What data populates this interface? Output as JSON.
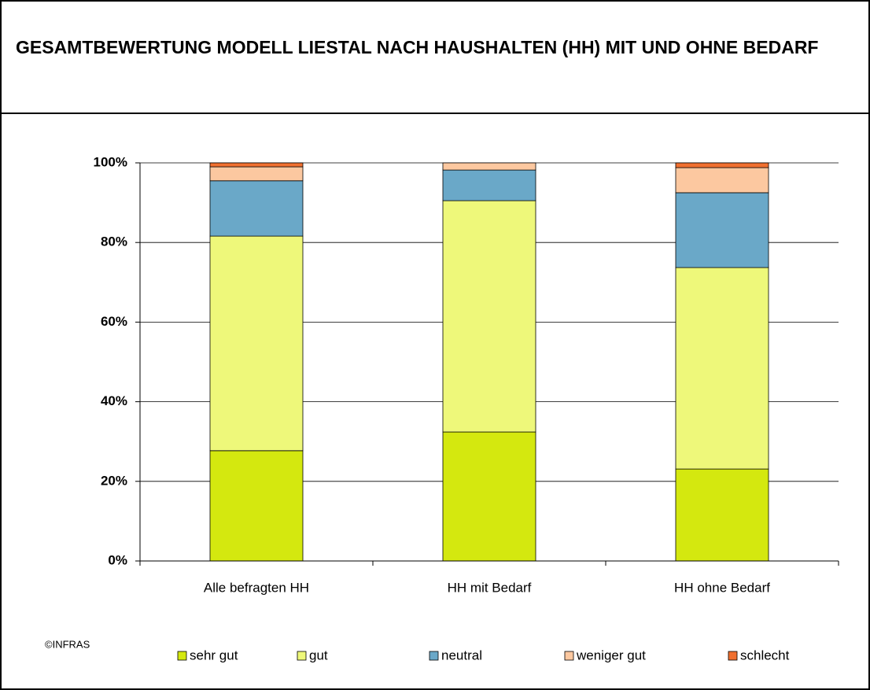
{
  "chart_data": {
    "type": "stacked_bar",
    "title": "GESAMTBEWERTUNG MODELL LIESTAL NACH HAUSHALTEN (HH) MIT UND OHNE BEDARF",
    "source": "©INFRAS",
    "categories": [
      "Alle befragten HH",
      "HH mit Bedarf",
      "HH ohne Bedarf"
    ],
    "series": [
      {
        "name": "sehr gut",
        "color": "#d4e80f",
        "values": [
          27.7,
          32.4,
          23.1
        ]
      },
      {
        "name": "gut",
        "color": "#eef87a",
        "values": [
          53.9,
          58.1,
          50.6
        ]
      },
      {
        "name": "neutral",
        "color": "#6aa8c8",
        "values": [
          13.9,
          7.7,
          18.8
        ]
      },
      {
        "name": "weniger gut",
        "color": "#fcc8a0",
        "values": [
          3.5,
          1.8,
          6.3
        ]
      },
      {
        "name": "schlecht",
        "color": "#f07030",
        "values": [
          1.0,
          0,
          1.2
        ]
      }
    ],
    "ylim": [
      0,
      100
    ],
    "yticks": [
      {
        "value": 0,
        "label": "0%"
      },
      {
        "value": 20,
        "label": "20%"
      },
      {
        "value": 40,
        "label": "40%"
      },
      {
        "value": 60,
        "label": "60%"
      },
      {
        "value": 80,
        "label": "80%"
      },
      {
        "value": 100,
        "label": "100%"
      }
    ],
    "grid": true,
    "legend": "bottom"
  }
}
